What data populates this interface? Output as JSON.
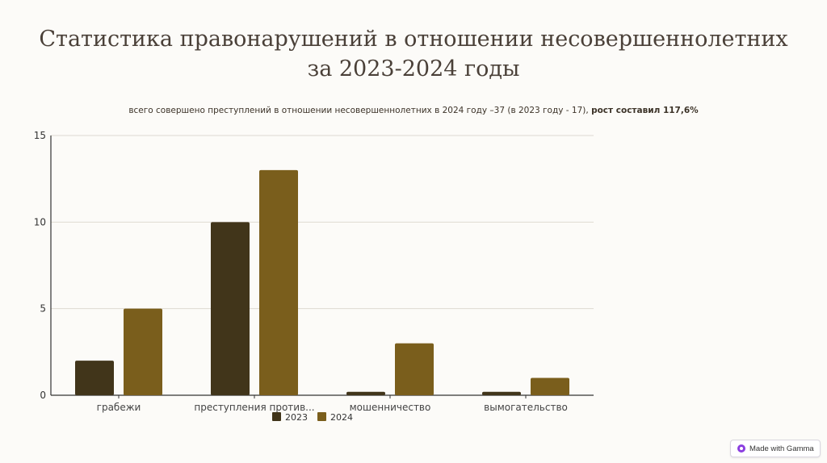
{
  "page": {
    "title": "Статистика правонарушений в отношении несовершеннолетних за 2023-2024 годы",
    "subtitle_text": "всего совершено преступлений в отношении несовершеннолетних в 2024 году –37 (в 2023 году - 17), ",
    "subtitle_bold": "рост составил 117,6%",
    "badge_label": "Made with Gamma"
  },
  "chart_data": {
    "type": "bar",
    "categories": [
      "грабежи",
      "преступления против...",
      "мошенничество",
      "вымогательство"
    ],
    "series": [
      {
        "name": "2023",
        "color": "#41351a",
        "values": [
          2,
          10,
          0.2,
          0.2
        ]
      },
      {
        "name": "2024",
        "color": "#7a5e1c",
        "values": [
          5,
          13,
          3,
          1
        ]
      }
    ],
    "ylim": [
      0,
      15
    ],
    "yticks": [
      0,
      5,
      10,
      15
    ],
    "grid": true,
    "legend": "bottom"
  }
}
